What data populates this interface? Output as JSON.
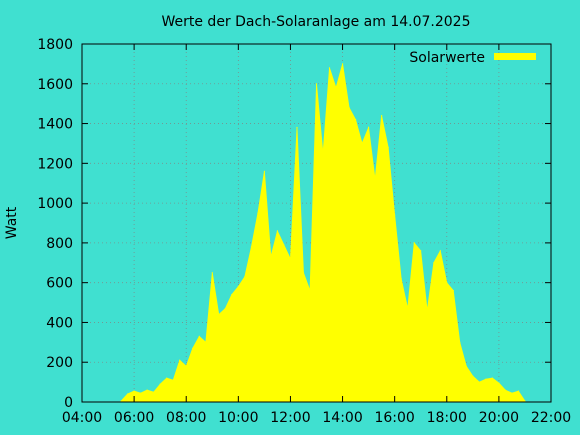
{
  "chart_data": {
    "type": "area",
    "title": "Werte der Dach-Solaranlage am 14.07.2025",
    "xlabel": "",
    "ylabel": "Watt",
    "xlim": [
      "04:00",
      "22:00"
    ],
    "ylim": [
      0,
      1800
    ],
    "x_ticks": [
      "04:00",
      "06:00",
      "08:00",
      "10:00",
      "12:00",
      "14:00",
      "16:00",
      "18:00",
      "20:00",
      "22:00"
    ],
    "y_ticks": [
      "0",
      "200",
      "400",
      "600",
      "800",
      "1000",
      "1200",
      "1400",
      "1600",
      "1800"
    ],
    "grid": true,
    "legend_position": "top-right",
    "fill_color": "#FFFF00",
    "background_color": "#40E0D0",
    "series": [
      {
        "name": "Solarwerte",
        "x": [
          "05:30",
          "05:45",
          "06:00",
          "06:15",
          "06:30",
          "06:45",
          "07:00",
          "07:15",
          "07:30",
          "07:45",
          "08:00",
          "08:15",
          "08:30",
          "08:45",
          "09:00",
          "09:15",
          "09:30",
          "09:45",
          "10:00",
          "10:15",
          "10:30",
          "10:45",
          "11:00",
          "11:15",
          "11:30",
          "11:45",
          "12:00",
          "12:15",
          "12:30",
          "12:45",
          "13:00",
          "13:15",
          "13:30",
          "13:45",
          "14:00",
          "14:15",
          "14:30",
          "14:45",
          "15:00",
          "15:15",
          "15:30",
          "15:45",
          "16:00",
          "16:15",
          "16:30",
          "16:45",
          "17:00",
          "17:15",
          "17:30",
          "17:45",
          "18:00",
          "18:15",
          "18:30",
          "18:45",
          "19:00",
          "19:15",
          "19:30",
          "19:45",
          "20:00",
          "20:15",
          "20:30",
          "20:45",
          "21:00"
        ],
        "values": [
          5,
          40,
          55,
          45,
          60,
          50,
          90,
          120,
          110,
          210,
          180,
          270,
          330,
          300,
          650,
          440,
          470,
          540,
          580,
          630,
          780,
          950,
          1160,
          730,
          860,
          790,
          720,
          1380,
          650,
          560,
          1600,
          1250,
          1680,
          1580,
          1700,
          1480,
          1420,
          1300,
          1380,
          1120,
          1440,
          1280,
          940,
          620,
          470,
          800,
          760,
          460,
          700,
          760,
          600,
          560,
          300,
          180,
          130,
          100,
          115,
          120,
          95,
          60,
          45,
          55,
          5
        ]
      }
    ]
  }
}
